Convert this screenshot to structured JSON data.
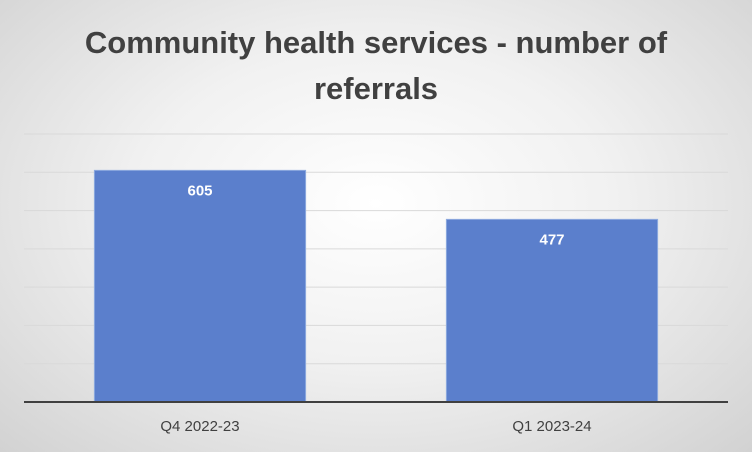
{
  "chart_data": {
    "type": "bar",
    "title": "Community health services - number of referrals",
    "categories": [
      "Q4 2022-23",
      "Q1 2023-24"
    ],
    "values": [
      605,
      477
    ],
    "color": "#5b7fcc",
    "ylim": [
      0,
      700
    ],
    "yticks": [
      0,
      100,
      200,
      300,
      400,
      500,
      600,
      700
    ],
    "grid": true
  }
}
